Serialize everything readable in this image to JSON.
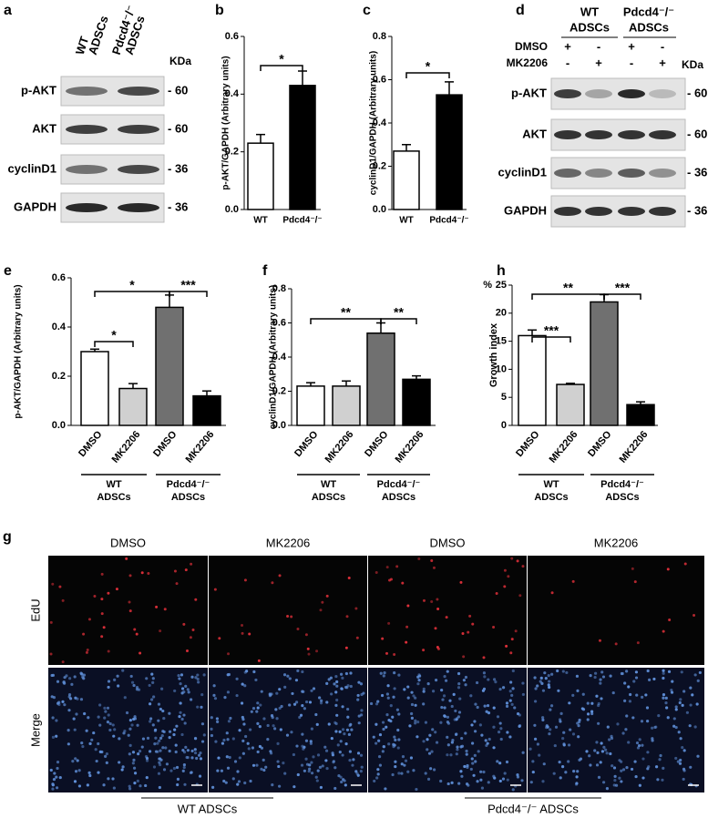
{
  "chart_data": [
    {
      "type": "bar",
      "panel": "b",
      "ylabel": "p-AKT/GAPDH (Arbitrary units)",
      "categories": [
        "WT",
        "Pdcd4⁻/⁻"
      ],
      "values": [
        0.23,
        0.43
      ],
      "errors": [
        0.03,
        0.05
      ],
      "colors": [
        "#ffffff",
        "#000000"
      ],
      "ylim": [
        0,
        0.6
      ],
      "yticks": [
        {
          "value": 0,
          "label": "0.0"
        },
        0.2,
        0.4,
        0.6
      ],
      "annotations": [
        "*"
      ]
    },
    {
      "type": "bar",
      "panel": "c",
      "ylabel": "cyclinD1/GAPDH (Arbitrary units)",
      "categories": [
        "WT",
        "Pdcd4⁻/⁻"
      ],
      "values": [
        0.27,
        0.53
      ],
      "errors": [
        0.03,
        0.06
      ],
      "colors": [
        "#ffffff",
        "#000000"
      ],
      "ylim": [
        0,
        0.8
      ],
      "yticks": [
        {
          "value": 0,
          "label": "0.0"
        },
        0.2,
        0.4,
        0.6,
        0.8
      ],
      "annotations": [
        "*"
      ]
    },
    {
      "type": "bar",
      "panel": "e",
      "ylabel": "p-AKT/GAPDH (Arbitrary units)",
      "categories": [
        "DMSO",
        "MK2206",
        "DMSO",
        "MK2206"
      ],
      "values": [
        0.3,
        0.15,
        0.48,
        0.12
      ],
      "errors": [
        0.01,
        0.02,
        0.05,
        0.02
      ],
      "colors": [
        "#ffffff",
        "#d0d0d0",
        "#707070",
        "#000000"
      ],
      "ylim": [
        0,
        0.6
      ],
      "yticks": [
        {
          "value": 0,
          "label": "0.0"
        },
        0.2,
        0.4,
        0.6
      ],
      "annotations": [
        "*",
        "***",
        "*"
      ],
      "groups": [
        [
          "WT",
          "ADSCs"
        ],
        [
          "Pdcd4⁻/⁻",
          "ADSCs"
        ]
      ]
    },
    {
      "type": "bar",
      "panel": "f",
      "ylabel": "cyclinD1/GAPDH (Arbitrary units)",
      "categories": [
        "DMSO",
        "MK2206",
        "DMSO",
        "MK2206"
      ],
      "values": [
        0.23,
        0.23,
        0.54,
        0.27
      ],
      "errors": [
        0.02,
        0.03,
        0.06,
        0.02
      ],
      "colors": [
        "#ffffff",
        "#d0d0d0",
        "#707070",
        "#000000"
      ],
      "ylim": [
        0,
        0.8
      ],
      "yticks": [
        {
          "value": 0,
          "label": "0.0"
        },
        0.2,
        0.4,
        0.6,
        0.8
      ],
      "annotations": [
        "**",
        "**"
      ],
      "groups": [
        [
          "WT",
          "ADSCs"
        ],
        [
          "Pdcd4⁻/⁻",
          "ADSCs"
        ]
      ]
    },
    {
      "type": "bar",
      "panel": "h",
      "ylabel": "Growth index",
      "yunit": "%",
      "categories": [
        "DMSO",
        "MK2206",
        "DMSO",
        "MK2206"
      ],
      "values": [
        16,
        7.3,
        22,
        3.7
      ],
      "errors": [
        1,
        0.2,
        1.3,
        0.5
      ],
      "colors": [
        "#ffffff",
        "#d0d0d0",
        "#707070",
        "#000000"
      ],
      "ylim": [
        0,
        25
      ],
      "yticks": [
        0,
        5,
        10,
        15,
        20,
        25
      ],
      "annotations": [
        "**",
        "***",
        "***"
      ],
      "groups": [
        [
          "WT",
          "ADSCs"
        ],
        [
          "Pdcd4⁻/⁻",
          "ADSCs"
        ]
      ]
    }
  ],
  "blots": [
    {
      "panel": "a",
      "unit": "KDa",
      "columns": [
        [
          "WT",
          "ADSCs"
        ],
        [
          "Pdcd4⁻/⁻",
          "ADSCs"
        ]
      ],
      "rows": [
        {
          "label": "p-AKT",
          "marker": "- 60"
        },
        {
          "label": "AKT",
          "marker": "- 60"
        },
        {
          "label": "cyclinD1",
          "marker": "- 36"
        },
        {
          "label": "GAPDH",
          "marker": "- 36"
        }
      ]
    },
    {
      "panel": "d",
      "unit": "KDa",
      "columns": [
        [
          "WT",
          "ADSCs"
        ],
        [
          "Pdcd4⁻/⁻",
          "ADSCs"
        ]
      ],
      "treatments": [
        {
          "label": "DMSO",
          "signs": [
            "+",
            "-",
            "+",
            "-"
          ]
        },
        {
          "label": "MK2206",
          "signs": [
            "-",
            "+",
            "-",
            "+"
          ]
        }
      ],
      "rows": [
        {
          "label": "p-AKT",
          "marker": "- 60"
        },
        {
          "label": "AKT",
          "marker": "- 60"
        },
        {
          "label": "cyclinD1",
          "marker": "- 36"
        },
        {
          "label": "GAPDH",
          "marker": "- 36"
        }
      ]
    }
  ],
  "images": {
    "panel": "g",
    "columns": [
      "DMSO",
      "MK2206",
      "DMSO",
      "MK2206"
    ],
    "rows": [
      "EdU",
      "Merge"
    ],
    "groups": [
      "WT ADSCs",
      "Pdcd4⁻/⁻ ADSCs"
    ]
  }
}
